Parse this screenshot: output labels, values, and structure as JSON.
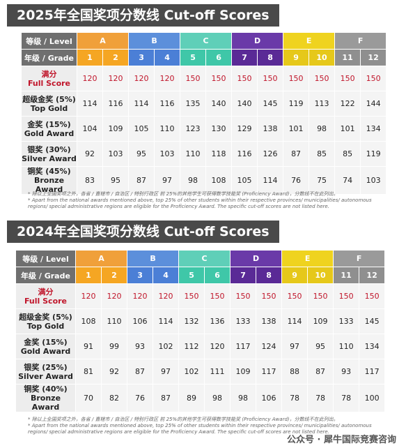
{
  "sections": [
    {
      "title": "2025年全国奖项分数线 Cut-off Scores",
      "level_label": "等级 / Level",
      "grade_label": "年级 / Grade",
      "levels": [
        "A",
        "B",
        "C",
        "D",
        "E",
        "F"
      ],
      "grades": [
        "1",
        "2",
        "3",
        "4",
        "5",
        "6",
        "7",
        "8",
        "9",
        "10",
        "11",
        "12"
      ],
      "rows": [
        {
          "cn": "满分",
          "en": "Full Score",
          "values": [
            "120",
            "120",
            "120",
            "120",
            "150",
            "150",
            "150",
            "150",
            "150",
            "150",
            "150",
            "150"
          ]
        },
        {
          "cn": "超级金奖 (5%)",
          "en": "Top Gold",
          "values": [
            "114",
            "116",
            "114",
            "116",
            "135",
            "140",
            "140",
            "145",
            "119",
            "113",
            "122",
            "144"
          ]
        },
        {
          "cn": "金奖 (15%)",
          "en": "Gold Award",
          "values": [
            "104",
            "109",
            "105",
            "110",
            "123",
            "130",
            "129",
            "138",
            "101",
            "98",
            "101",
            "134"
          ]
        },
        {
          "cn": "银奖 (30%)",
          "en": "Silver Award",
          "values": [
            "92",
            "103",
            "95",
            "103",
            "110",
            "118",
            "116",
            "126",
            "87",
            "85",
            "85",
            "119"
          ]
        },
        {
          "cn": "铜奖 (45%)",
          "en": "Bronze Award",
          "values": [
            "83",
            "95",
            "87",
            "97",
            "98",
            "108",
            "105",
            "114",
            "76",
            "75",
            "74",
            "103"
          ]
        }
      ],
      "note_cn": "* 除以上全国奖项之外，各省 / 直辖市 / 自治区 / 特别行政区 前 25%的其他学生可获得数学技能奖 (Proficiency Award)，分数线不在此列出。",
      "note_en": "* Apart from the national awards mentioned above, top 25% of other students within their respective provinces/ municipalities/ autonomous regions/ special administrative regions are eligible for the Proficiency Award. The specific cut-off scores are not listed here."
    },
    {
      "title": "2024年全国奖项分数线 Cut-off Scores",
      "level_label": "等级 / Level",
      "grade_label": "年级 / Grade",
      "levels": [
        "A",
        "B",
        "C",
        "D",
        "E",
        "F"
      ],
      "grades": [
        "1",
        "2",
        "3",
        "4",
        "5",
        "6",
        "7",
        "8",
        "9",
        "10",
        "11",
        "12"
      ],
      "rows": [
        {
          "cn": "满分",
          "en": "Full Score",
          "values": [
            "120",
            "120",
            "120",
            "120",
            "150",
            "150",
            "150",
            "150",
            "150",
            "150",
            "150",
            "150"
          ]
        },
        {
          "cn": "超级金奖 (5%)",
          "en": "Top Gold",
          "values": [
            "108",
            "110",
            "106",
            "114",
            "132",
            "136",
            "133",
            "138",
            "114",
            "109",
            "133",
            "145"
          ]
        },
        {
          "cn": "金奖 (15%)",
          "en": "Gold Award",
          "values": [
            "91",
            "99",
            "93",
            "102",
            "112",
            "120",
            "117",
            "124",
            "97",
            "95",
            "110",
            "134"
          ]
        },
        {
          "cn": "银奖 (25%)",
          "en": "Silver Award",
          "values": [
            "81",
            "92",
            "87",
            "97",
            "102",
            "111",
            "109",
            "117",
            "88",
            "87",
            "93",
            "117"
          ]
        },
        {
          "cn": "铜奖 (40%)",
          "en": "Bronze Award",
          "values": [
            "70",
            "82",
            "76",
            "87",
            "89",
            "98",
            "98",
            "106",
            "78",
            "78",
            "78",
            "100"
          ]
        }
      ],
      "note_cn": "* 除以上全国奖项之外，各省 / 直辖市 / 自治区 / 特别行政区 前 25%的其他学生可获得数学技能奖 (Proficiency Award)，分数线不在此列出。",
      "note_en": "* Apart from the national awards mentioned above, top 25% of other students within their respective provinces/ municipalities/ autonomous regions/ special administrative regions are eligible for the Proficiency Award. The specific cut-off scores are not listed here."
    }
  ],
  "watermark": "公众号 · 犀牛国际竞赛咨询",
  "colors": {
    "A": "#f0a03a",
    "B": "#5c8fdb",
    "C": "#5fcfb8",
    "D": "#6a3aa8",
    "E": "#efd31f",
    "F": "#9a9a9a",
    "full_score": "#c0152a"
  }
}
